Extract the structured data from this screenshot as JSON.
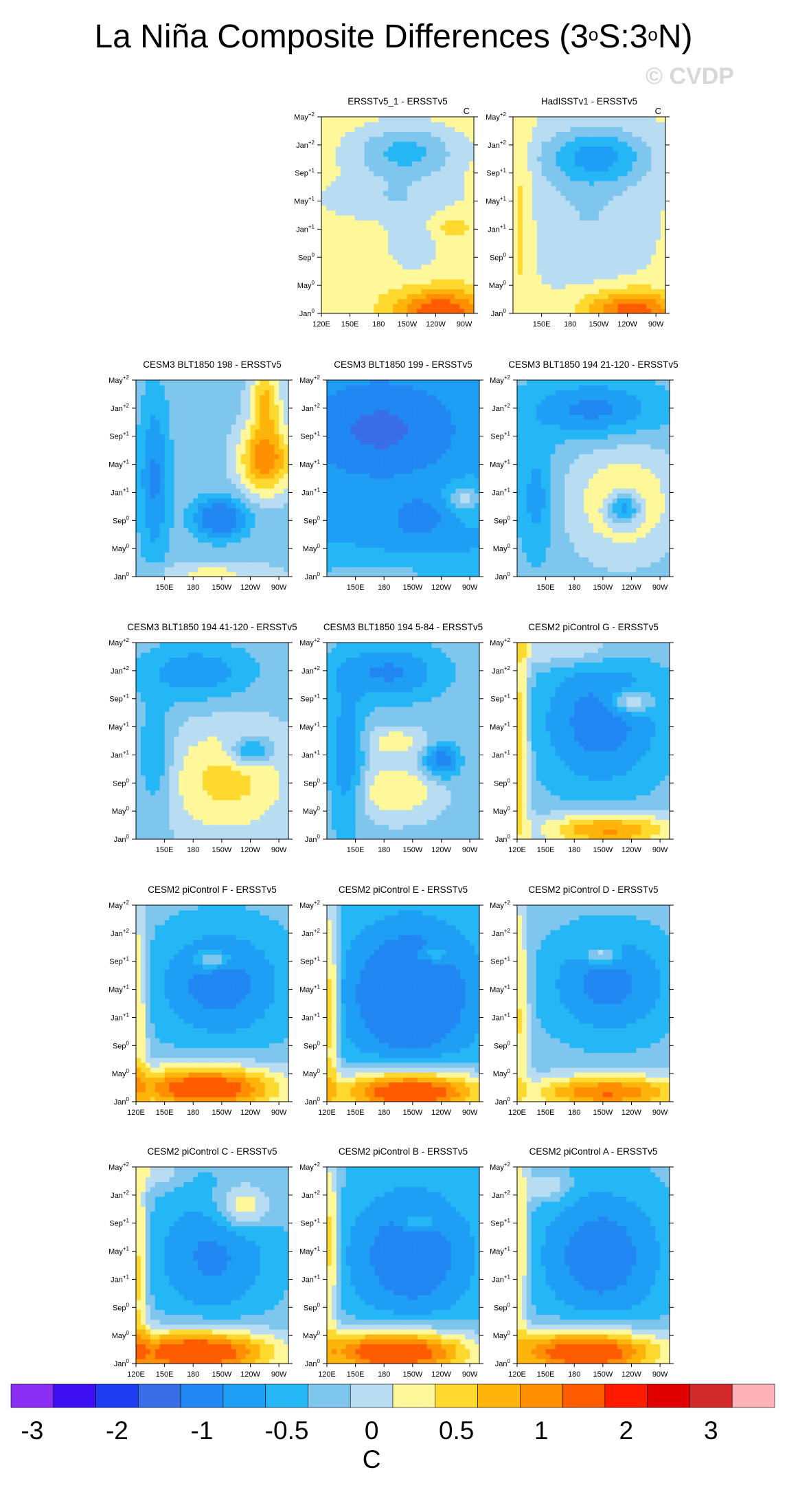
{
  "figure": {
    "title_main": "La Niña Composite Differences (3",
    "title_deg1": "o",
    "title_mid": "S:3",
    "title_deg2": "o",
    "title_end": "N)",
    "watermark": "© CVDP"
  },
  "chart_data": {
    "type": "heatmap",
    "y_tick_labels": [
      {
        "base": "Jan",
        "sup": "0"
      },
      {
        "base": "May",
        "sup": "0"
      },
      {
        "base": "Sep",
        "sup": "0"
      },
      {
        "base": "Jan",
        "sup": "+1"
      },
      {
        "base": "May",
        "sup": "+1"
      },
      {
        "base": "Sep",
        "sup": "+1"
      },
      {
        "base": "Jan",
        "sup": "+2"
      },
      {
        "base": "May",
        "sup": "+2"
      }
    ],
    "x_tick_labels": [
      "120E",
      "150E",
      "180",
      "150W",
      "120W",
      "90W"
    ],
    "panels": [
      {
        "title": "ERSSTv5_1 - ERSSTv5",
        "units": "C",
        "show_x_ticks": true,
        "show_120e": true,
        "pattern": "obs1"
      },
      {
        "title": "HadISSTv1 - ERSSTv5",
        "units": "C",
        "show_x_ticks": true,
        "show_120e": false,
        "pattern": "obs2"
      },
      {
        "title": "CESM3 BLT1850 198 - ERSSTv5",
        "units": "",
        "show_x_ticks": true,
        "show_120e": false,
        "pattern": "c198"
      },
      {
        "title": "CESM3 BLT1850 199 - ERSSTv5",
        "units": "",
        "show_x_ticks": true,
        "show_120e": false,
        "pattern": "c199"
      },
      {
        "title": "CESM3 BLT1850 194 21-120 - ERSSTv5",
        "units": "",
        "show_x_ticks": true,
        "show_120e": false,
        "pattern": "c194a"
      },
      {
        "title": "CESM3 BLT1850 194 41-120 - ERSSTv5",
        "units": "",
        "show_x_ticks": true,
        "show_120e": false,
        "pattern": "c194b"
      },
      {
        "title": "CESM3 BLT1850 194 5-84 - ERSSTv5",
        "units": "",
        "show_x_ticks": true,
        "show_120e": false,
        "pattern": "c194c"
      },
      {
        "title": "CESM2 piControl G - ERSSTv5",
        "units": "",
        "show_x_ticks": true,
        "show_120e": true,
        "pattern": "pcG"
      },
      {
        "title": "CESM2 piControl F - ERSSTv5",
        "units": "",
        "show_x_ticks": true,
        "show_120e": true,
        "pattern": "pcF"
      },
      {
        "title": "CESM2 piControl E - ERSSTv5",
        "units": "",
        "show_x_ticks": true,
        "show_120e": true,
        "pattern": "pcE"
      },
      {
        "title": "CESM2 piControl D - ERSSTv5",
        "units": "",
        "show_x_ticks": true,
        "show_120e": true,
        "pattern": "pcD"
      },
      {
        "title": "CESM2 piControl C - ERSSTv5",
        "units": "",
        "show_x_ticks": true,
        "show_120e": true,
        "pattern": "pcC"
      },
      {
        "title": "CESM2 piControl B - ERSSTv5",
        "units": "",
        "show_x_ticks": true,
        "show_120e": true,
        "pattern": "pcB"
      },
      {
        "title": "CESM2 piControl A - ERSSTv5",
        "units": "",
        "show_x_ticks": true,
        "show_120e": true,
        "pattern": "pcA"
      }
    ],
    "colorbar": {
      "levels": [
        -3,
        -2.5,
        -2,
        -1.5,
        -1,
        -0.75,
        -0.5,
        -0.25,
        0,
        0.25,
        0.5,
        0.75,
        1,
        1.5,
        2,
        2.5,
        3
      ],
      "colors": [
        "#8b2ff5",
        "#3c10f2",
        "#1f3df0",
        "#3a6ee6",
        "#2187f2",
        "#1e9ff5",
        "#25b6f5",
        "#7fc6ee",
        "#b8dcf2",
        "#fff89a",
        "#ffd92f",
        "#ffb40c",
        "#ff8f00",
        "#ff5c00",
        "#ff1a00",
        "#e00000",
        "#d32b2b",
        "#ffb3b8"
      ],
      "tick_labels": [
        "-3",
        "-2",
        "-1",
        "-0.5",
        "0",
        "0.5",
        "1",
        "2",
        "3"
      ],
      "units": "C"
    }
  }
}
